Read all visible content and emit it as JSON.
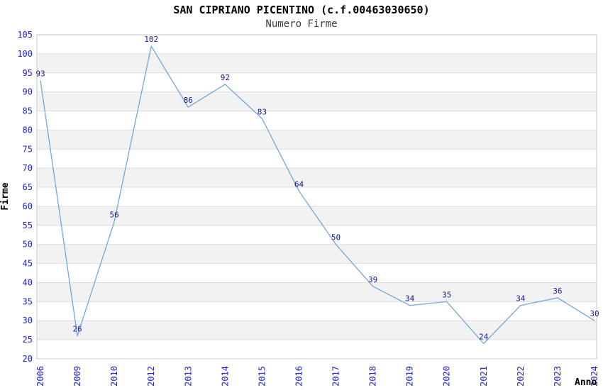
{
  "header": {
    "title": "SAN CIPRIANO PICENTINO (c.f.00463030650)",
    "subtitle": "Numero Firme"
  },
  "chart_data": {
    "type": "line",
    "title": "SAN CIPRIANO PICENTINO (c.f.00463030650)",
    "subtitle": "Numero Firme",
    "xlabel": "Anno",
    "ylabel": "Firme",
    "categories": [
      "2006",
      "2009",
      "2010",
      "2012",
      "2013",
      "2014",
      "2015",
      "2016",
      "2017",
      "2018",
      "2019",
      "2020",
      "2021",
      "2022",
      "2023",
      "2024"
    ],
    "values": [
      93,
      26,
      56,
      102,
      86,
      92,
      83,
      64,
      50,
      39,
      34,
      35,
      24,
      34,
      36,
      30
    ],
    "ylim": [
      20,
      105
    ],
    "ytick_step": 5,
    "grid": true,
    "legend": "none",
    "striped_background": true,
    "x_tick_rotation": -90,
    "colors": {
      "line": "#76a5da",
      "data_label": "#18188c",
      "tick_label": "#2323cd",
      "stripe": "#f2f2f2",
      "gridline": "#dddddd",
      "plot_border": "#c8c8c8",
      "title": "#000000",
      "subtitle": "#3c3c3c",
      "axis_label": "#000000"
    }
  }
}
